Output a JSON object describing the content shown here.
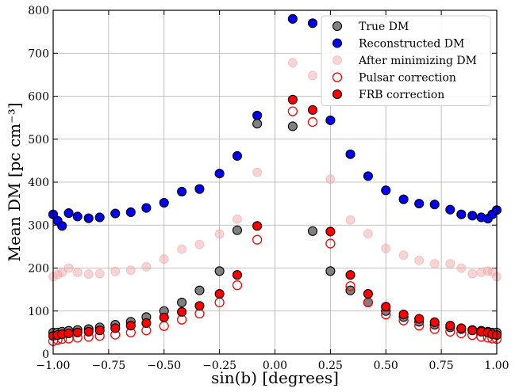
{
  "chart_data": {
    "type": "scatter",
    "xlabel": "sin(b) [degrees]",
    "ylabel": "Mean DM [pc cm⁻³]",
    "xlim": [
      -1.0,
      1.0
    ],
    "ylim": [
      0,
      800
    ],
    "grid": true,
    "legend_position": "top-right",
    "xticks": [
      -1.0,
      -0.75,
      -0.5,
      -0.25,
      0.0,
      0.25,
      0.5,
      0.75,
      1.0
    ],
    "xtick_labels": [
      "−1.00",
      "−0.75",
      "−0.50",
      "−0.25",
      "0.00",
      "0.25",
      "0.50",
      "0.75",
      "1.00"
    ],
    "yticks": [
      0,
      100,
      200,
      300,
      400,
      500,
      600,
      700,
      800
    ],
    "ytick_labels": [
      "0",
      "100",
      "200",
      "300",
      "400",
      "500",
      "600",
      "700",
      "800"
    ],
    "x": [
      -1.0,
      -0.98,
      -0.96,
      -0.93,
      -0.89,
      -0.84,
      -0.79,
      -0.72,
      -0.65,
      -0.58,
      -0.5,
      -0.42,
      -0.34,
      -0.25,
      -0.17,
      -0.08,
      0.08,
      0.17,
      0.25,
      0.34,
      0.42,
      0.5,
      0.58,
      0.65,
      0.72,
      0.79,
      0.84,
      0.89,
      0.93,
      0.96,
      0.98,
      1.0
    ],
    "series": [
      {
        "name": "True DM",
        "color": "#808080",
        "edge": "#000000",
        "filled": true,
        "values": [
          50,
          50,
          52,
          54,
          56,
          58,
          62,
          68,
          75,
          86,
          100,
          120,
          148,
          193,
          288,
          536,
          530,
          286,
          193,
          148,
          120,
          100,
          86,
          75,
          68,
          62,
          58,
          56,
          54,
          52,
          50,
          50
        ]
      },
      {
        "name": "Reconstructed DM",
        "color": "#0000ee",
        "edge": "#000000",
        "filled": true,
        "values": [
          325,
          310,
          298,
          328,
          320,
          316,
          318,
          327,
          330,
          340,
          352,
          378,
          384,
          420,
          461,
          555,
          780,
          770,
          544,
          465,
          414,
          381,
          360,
          350,
          348,
          336,
          325,
          322,
          318,
          315,
          325,
          335
        ]
      },
      {
        "name": "After minimizing DM",
        "color": "#f0a0a0",
        "edge": "#f0a0a0",
        "filled": true,
        "values": [
          180,
          185,
          190,
          200,
          190,
          186,
          187,
          192,
          195,
          203,
          221,
          244,
          255,
          279,
          314,
          423,
          678,
          648,
          407,
          312,
          280,
          246,
          230,
          218,
          210,
          210,
          200,
          187,
          190,
          193,
          191,
          180
        ]
      },
      {
        "name": "Pulsar correction",
        "color": "#ff0000",
        "edge": "#ff0000",
        "filled": false,
        "values": [
          30,
          33,
          35,
          36,
          38,
          40,
          42,
          45,
          50,
          55,
          65,
          80,
          94,
          120,
          160,
          266,
          565,
          540,
          257,
          158,
          120,
          92,
          78,
          66,
          58,
          52,
          48,
          44,
          40,
          38,
          36,
          35
        ]
      },
      {
        "name": "FRB correction",
        "color": "#ff0000",
        "edge": "#000000",
        "filled": true,
        "values": [
          42,
          44,
          46,
          48,
          50,
          52,
          55,
          60,
          66,
          72,
          85,
          98,
          112,
          140,
          184,
          298,
          592,
          568,
          285,
          184,
          140,
          110,
          92,
          82,
          74,
          66,
          60,
          55,
          52,
          50,
          46,
          44
        ]
      }
    ],
    "legend": [
      "True DM",
      "Reconstructed DM",
      "After minimizing DM",
      "Pulsar correction",
      "FRB correction"
    ]
  }
}
